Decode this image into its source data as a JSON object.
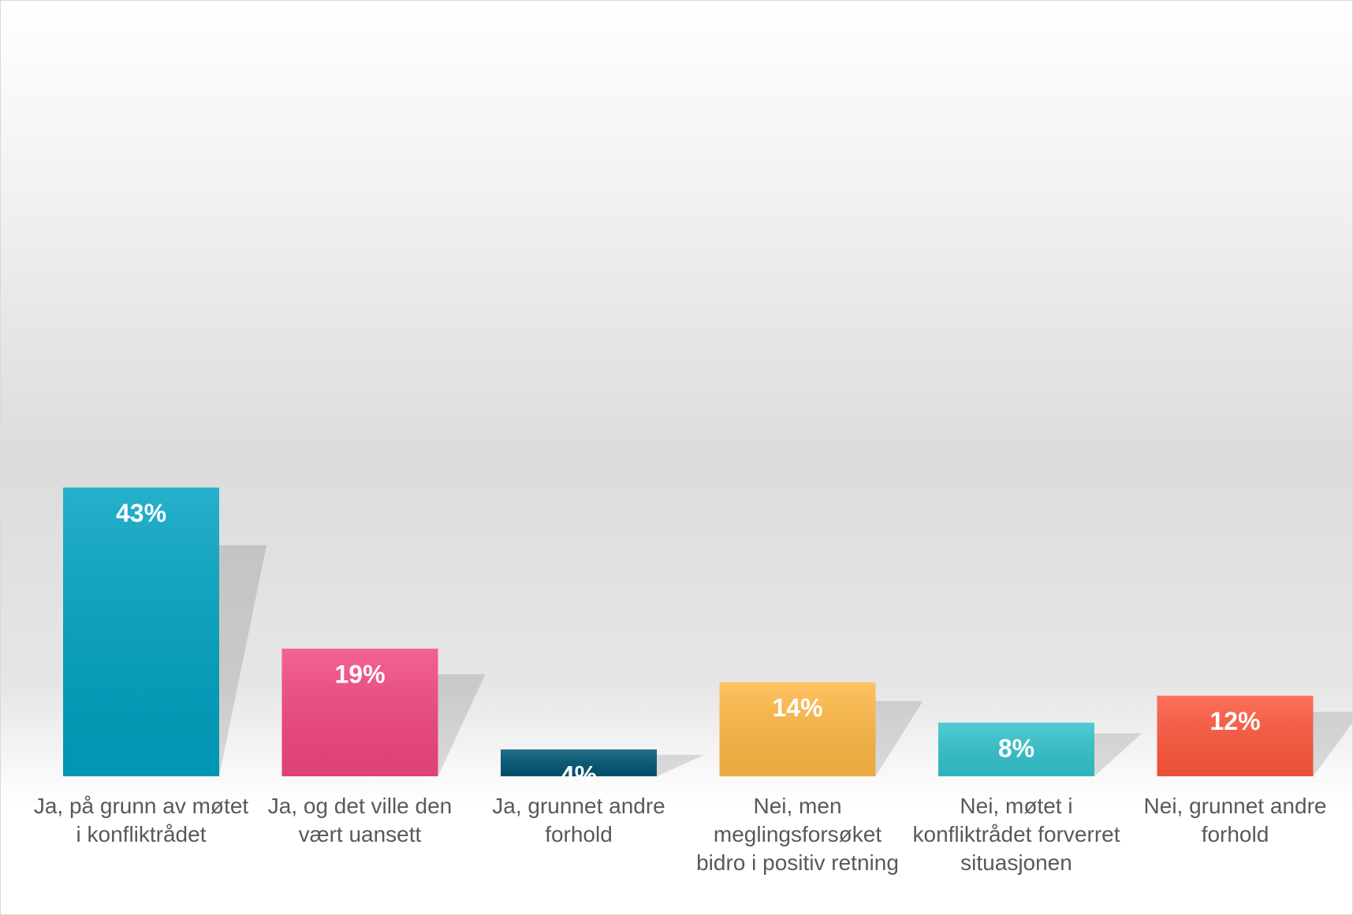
{
  "chart_data": {
    "type": "bar",
    "categories": [
      "Ja, på grunn av møtet i konfliktrådet",
      "Ja, og det ville den vært uansett",
      "Ja, grunnet andre forhold",
      "Nei, men meglingsforsøket bidro i positiv retning",
      "Nei, møtet i konfliktrådet forverret situasjonen",
      "Nei, grunnet andre forhold"
    ],
    "values": [
      43,
      19,
      4,
      14,
      8,
      12
    ],
    "value_labels": [
      "43%",
      "19%",
      "4%",
      "14%",
      "8%",
      "12%"
    ],
    "colors": [
      "#00a2c2",
      "#f2477e",
      "#005673",
      "#ffb845",
      "#33c3cc",
      "#ff573d"
    ],
    "ylim": [
      0,
      100
    ]
  }
}
